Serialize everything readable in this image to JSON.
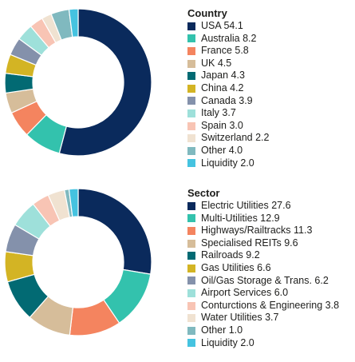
{
  "chart_data": [
    {
      "type": "pie",
      "donut": true,
      "title": "Country",
      "series": [
        {
          "label": "USA 54.1",
          "value": 54.1,
          "color": "#0a2a5c"
        },
        {
          "label": "Australia 8.2",
          "value": 8.2,
          "color": "#33c2ad"
        },
        {
          "label": "France 5.8",
          "value": 5.8,
          "color": "#f4845f"
        },
        {
          "label": "UK 4.5",
          "value": 4.5,
          "color": "#d6bd9a"
        },
        {
          "label": "Japan 4.3",
          "value": 4.3,
          "color": "#026a73"
        },
        {
          "label": "China 4.2",
          "value": 4.2,
          "color": "#d3b424"
        },
        {
          "label": "Canada 3.9",
          "value": 3.9,
          "color": "#8491ab"
        },
        {
          "label": "Italy 3.7",
          "value": 3.7,
          "color": "#9ee0da"
        },
        {
          "label": "Spain 3.0",
          "value": 3.0,
          "color": "#f8c4b4"
        },
        {
          "label": "Switzerland 2.2",
          "value": 2.2,
          "color": "#f0e2d1"
        },
        {
          "label": "Other 4.0",
          "value": 4.0,
          "color": "#80b9bf"
        },
        {
          "label": "Liquidity 2.0",
          "value": 2.0,
          "color": "#45c3e0"
        }
      ]
    },
    {
      "type": "pie",
      "donut": true,
      "title": "Sector",
      "series": [
        {
          "label": "Electric Utilities 27.6",
          "value": 27.6,
          "color": "#0a2a5c"
        },
        {
          "label": "Multi-Utilities 12.9",
          "value": 12.9,
          "color": "#33c2ad"
        },
        {
          "label": "Highways/Railtracks 11.3",
          "value": 11.3,
          "color": "#f4845f"
        },
        {
          "label": "Specialised REITs 9.6",
          "value": 9.6,
          "color": "#d6bd9a"
        },
        {
          "label": "Railroads 9.2",
          "value": 9.2,
          "color": "#026a73"
        },
        {
          "label": "Gas Utilities 6.6",
          "value": 6.6,
          "color": "#d3b424"
        },
        {
          "label": "Oil/Gas Storage & Trans. 6.2",
          "value": 6.2,
          "color": "#8491ab"
        },
        {
          "label": "Airport Services 6.0",
          "value": 6.0,
          "color": "#9ee0da"
        },
        {
          "label": "Conturctions & Engineering 3.8",
          "value": 3.8,
          "color": "#f8c4b4"
        },
        {
          "label": "Water Utilities 3.7",
          "value": 3.7,
          "color": "#f0e2d1"
        },
        {
          "label": "Other 1.0",
          "value": 1.0,
          "color": "#80b9bf"
        },
        {
          "label": "Liquidity 2.0",
          "value": 2.0,
          "color": "#45c3e0"
        }
      ]
    }
  ]
}
